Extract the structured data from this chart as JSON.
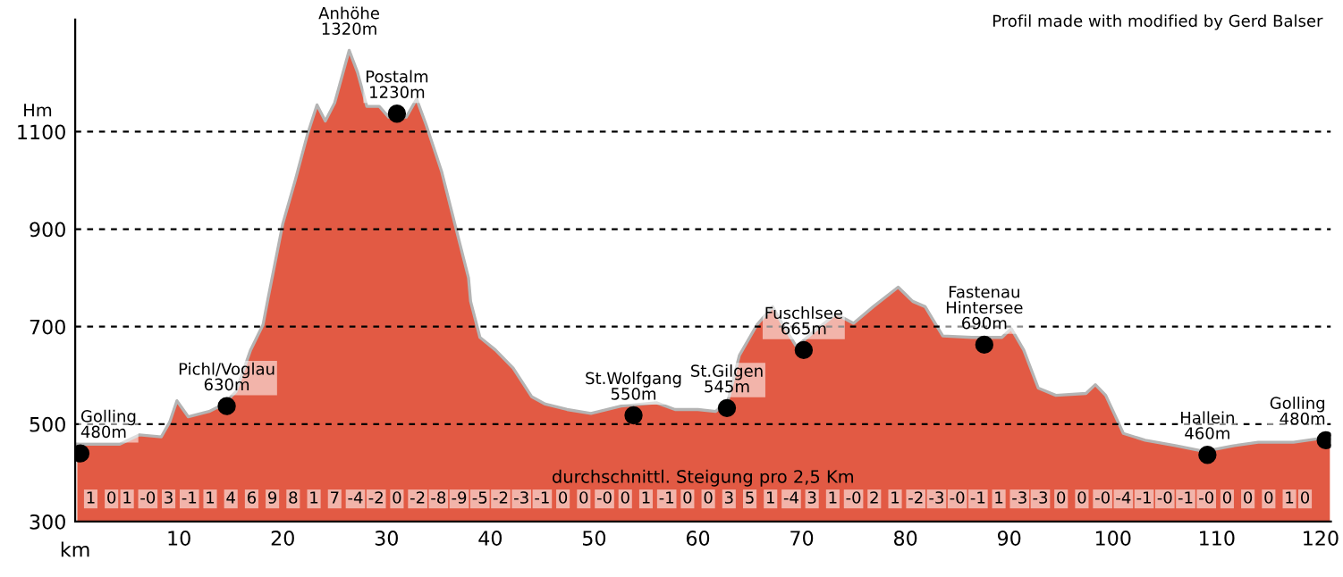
{
  "chart_data": {
    "type": "area",
    "xlabel": "km",
    "ylabel": "Hm",
    "xlim": [
      0,
      121
    ],
    "xticks": [
      10,
      20,
      30,
      40,
      50,
      60,
      70,
      80,
      90,
      100,
      110,
      120
    ],
    "ylim": [
      300,
      1330
    ],
    "yticks": [
      300,
      500,
      700,
      900,
      1100
    ],
    "grid": "y",
    "line_style": "dashed",
    "legend": false,
    "series": [
      {
        "color": "#e25a44",
        "x": [
          0.2,
          2.2,
          4.3,
          6.2,
          8.3,
          9.1,
          9.8,
          10.9,
          12.9,
          14.3,
          15.5,
          16.9,
          18.1,
          18.6,
          20,
          21.2,
          22.4,
          23.3,
          24.1,
          25,
          26.4,
          27.2,
          28.1,
          29.3,
          30.2,
          31.9,
          32.9,
          33.8,
          35.3,
          36.4,
          37.9,
          38.1,
          39,
          40.5,
          42.2,
          44,
          45.3,
          47.4,
          49.7,
          52.6,
          56,
          57.8,
          60,
          61.7,
          62.9,
          64,
          65.7,
          67.2,
          68.1,
          69.5,
          70.9,
          73.3,
          75,
          76.9,
          79.3,
          80.7,
          81.9,
          83.6,
          86.4,
          89.3,
          90.2,
          91.4,
          92.8,
          94.5,
          97.4,
          98.3,
          99.3,
          101,
          103.1,
          106,
          108.8,
          111.7,
          114,
          117.4,
          119.8,
          120.9
        ],
        "values": [
          459,
          459,
          459,
          478,
          474,
          504,
          548,
          515,
          526,
          541,
          567,
          652,
          704,
          760,
          911,
          1000,
          1096,
          1155,
          1122,
          1159,
          1267,
          1222,
          1152,
          1152,
          1130,
          1130,
          1167,
          1115,
          1019,
          926,
          800,
          752,
          678,
          652,
          615,
          556,
          541,
          530,
          522,
          537,
          544,
          530,
          530,
          526,
          548,
          641,
          704,
          741,
          707,
          659,
          685,
          726,
          707,
          741,
          781,
          752,
          741,
          681,
          678,
          678,
          696,
          652,
          574,
          559,
          563,
          581,
          559,
          481,
          467,
          456,
          444,
          456,
          463,
          463,
          470,
          470
        ]
      },
      {
        "type": "scatter",
        "color": "#000000",
        "marker": "circle",
        "x": [
          0.5,
          14.6,
          31,
          53.8,
          62.8,
          70.2,
          87.6,
          109.1,
          120.5
        ],
        "values": [
          440,
          537,
          1137,
          518,
          533,
          652,
          663,
          437,
          467
        ]
      }
    ],
    "annotations": [
      "Profil made with modified by Gerd Balser",
      "durchschnittl. Steigung pro 2,5 Km",
      {
        "text": "Golling\n480m",
        "x": 0.5,
        "y": 440
      },
      {
        "text": "Pichl/Voglau\n630m",
        "x": 14.6,
        "y": 537
      },
      {
        "text": "Anhöhe\n1320m",
        "x": 26.4,
        "y": 1267
      },
      {
        "text": "Postalm\n1230m",
        "x": 31,
        "y": 1137
      },
      {
        "text": "St.Wolfgang\n550m",
        "x": 53.8,
        "y": 518
      },
      {
        "text": "St.Gilgen\n545m",
        "x": 62.8,
        "y": 533
      },
      {
        "text": "Fuschlsee\n665m",
        "x": 70.2,
        "y": 652
      },
      {
        "text": "Fastenau\nHintersee\n690m",
        "x": 87.6,
        "y": 663
      },
      {
        "text": "Hallein\n460m",
        "x": 109.1,
        "y": 437
      },
      {
        "text": "Golling\n480m",
        "x": 120.5,
        "y": 467
      },
      {
        "text": "1",
        "x": 1,
        "y": 305
      },
      {
        "text": "0",
        "x": 3,
        "y": 305
      },
      {
        "text": "1",
        "x": 5,
        "y": 305
      },
      {
        "text": "-0",
        "x": 7,
        "y": 305
      },
      {
        "text": "3",
        "x": 9,
        "y": 305
      },
      {
        "text": "-1",
        "x": 11,
        "y": 305
      },
      {
        "text": "1",
        "x": 13,
        "y": 305
      },
      {
        "text": "4",
        "x": 15,
        "y": 305
      },
      {
        "text": "6",
        "x": 17,
        "y": 305
      },
      {
        "text": "9",
        "x": 19,
        "y": 305
      },
      {
        "text": "8",
        "x": 21,
        "y": 305
      },
      {
        "text": "1",
        "x": 23,
        "y": 305
      },
      {
        "text": "7",
        "x": 25,
        "y": 305
      },
      {
        "text": "-4",
        "x": 27,
        "y": 305
      },
      {
        "text": "-2",
        "x": 29,
        "y": 305
      },
      {
        "text": "0",
        "x": 31,
        "y": 305
      },
      {
        "text": "-2",
        "x": 33,
        "y": 305
      },
      {
        "text": "-8",
        "x": 35,
        "y": 305
      },
      {
        "text": "-9",
        "x": 37,
        "y": 305
      },
      {
        "text": "-5",
        "x": 39,
        "y": 305
      },
      {
        "text": "-2",
        "x": 41,
        "y": 305
      },
      {
        "text": "-3",
        "x": 43,
        "y": 305
      },
      {
        "text": "-1",
        "x": 45,
        "y": 305
      },
      {
        "text": "0",
        "x": 47,
        "y": 305
      },
      {
        "text": "0",
        "x": 49,
        "y": 305
      },
      {
        "text": "-0",
        "x": 51,
        "y": 305
      },
      {
        "text": "0",
        "x": 53,
        "y": 305
      },
      {
        "text": "1",
        "x": 55,
        "y": 305
      },
      {
        "text": "-1",
        "x": 57,
        "y": 305
      },
      {
        "text": "0",
        "x": 59,
        "y": 305
      },
      {
        "text": "0",
        "x": 61,
        "y": 305
      },
      {
        "text": "3",
        "x": 63,
        "y": 305
      },
      {
        "text": "5",
        "x": 65,
        "y": 305
      },
      {
        "text": "1",
        "x": 67,
        "y": 305
      },
      {
        "text": "-4",
        "x": 69,
        "y": 305
      },
      {
        "text": "3",
        "x": 71,
        "y": 305
      },
      {
        "text": "1",
        "x": 73,
        "y": 305
      },
      {
        "text": "-0",
        "x": 75,
        "y": 305
      },
      {
        "text": "2",
        "x": 77,
        "y": 305
      },
      {
        "text": "1",
        "x": 79,
        "y": 305
      },
      {
        "text": "-2",
        "x": 81,
        "y": 305
      },
      {
        "text": "-3",
        "x": 83,
        "y": 305
      },
      {
        "text": "-0",
        "x": 85,
        "y": 305
      },
      {
        "text": "-1",
        "x": 87,
        "y": 305
      },
      {
        "text": "1",
        "x": 89,
        "y": 305
      },
      {
        "text": "-3",
        "x": 91,
        "y": 305
      },
      {
        "text": "-3",
        "x": 93,
        "y": 305
      },
      {
        "text": "0",
        "x": 95,
        "y": 305
      },
      {
        "text": "0",
        "x": 97,
        "y": 305
      },
      {
        "text": "-0",
        "x": 99,
        "y": 305
      },
      {
        "text": "-4",
        "x": 101,
        "y": 305
      },
      {
        "text": "-1",
        "x": 103,
        "y": 305
      },
      {
        "text": "-0",
        "x": 105,
        "y": 305
      },
      {
        "text": "-1",
        "x": 107,
        "y": 305
      },
      {
        "text": "-0",
        "x": 109,
        "y": 305
      },
      {
        "text": "0",
        "x": 111,
        "y": 305
      },
      {
        "text": "0",
        "x": 113,
        "y": 305
      },
      {
        "text": "0",
        "x": 115,
        "y": 305
      },
      {
        "text": "1",
        "x": 117,
        "y": 305
      },
      {
        "text": "0",
        "x": 119,
        "y": 305
      }
    ]
  }
}
